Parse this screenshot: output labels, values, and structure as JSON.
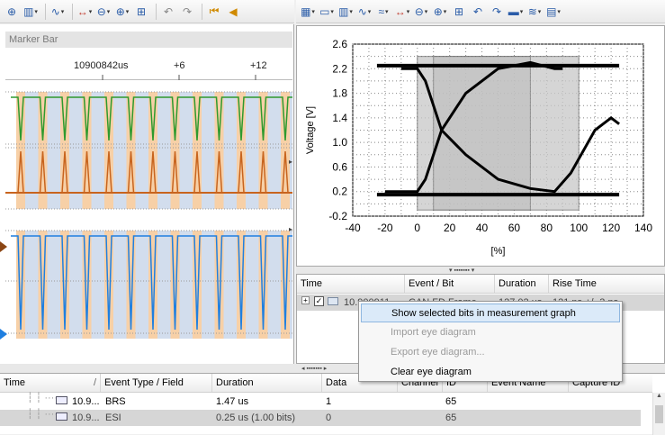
{
  "left_toolbar": {
    "icons": [
      "zoom-fit-icon",
      "chart-options-icon",
      "curve-icon",
      "expand-horizontal-icon",
      "zoom-out-icon",
      "zoom-in-icon",
      "zoom-box-icon",
      "undo-icon",
      "redo-icon",
      "go-first-icon",
      "go-prev-icon"
    ]
  },
  "right_toolbar": {
    "icons": [
      "grid-icon",
      "window-icon",
      "chart-options-icon",
      "curve-icon",
      "curve2-icon",
      "expand-horizontal-icon",
      "zoom-out-icon",
      "zoom-in-icon",
      "zoom-box-icon",
      "undo-icon",
      "redo-icon",
      "display-icon",
      "signal-icon",
      "print-icon"
    ]
  },
  "marker_bar": {
    "label": "Marker Bar"
  },
  "ruler": {
    "time_label": "10900842us",
    "tick1": "+6",
    "tick2": "+12"
  },
  "eye_chart": {
    "ylabel": "Voltage [V]",
    "xlabel": "[%]",
    "y_ticks": [
      "2.6",
      "2.2",
      "1.8",
      "1.4",
      "1.0",
      "0.6",
      "0.2",
      "-0.2"
    ],
    "x_ticks": [
      "-40",
      "-20",
      "0",
      "20",
      "40",
      "60",
      "80",
      "100",
      "120",
      "140"
    ]
  },
  "chart_data": {
    "type": "line",
    "title": "",
    "xlabel": "[%]",
    "ylabel": "Voltage [V]",
    "xlim": [
      -40,
      140
    ],
    "ylim": [
      -0.2,
      2.6
    ],
    "grid": true,
    "series": [
      {
        "x": [
          -25,
          0,
          20,
          40,
          60,
          80,
          100,
          125
        ],
        "y": [
          2.25,
          2.25,
          2.25,
          2.25,
          2.25,
          2.25,
          2.25,
          2.25
        ]
      },
      {
        "x": [
          -25,
          0,
          20,
          40,
          60,
          80,
          100,
          125
        ],
        "y": [
          0.15,
          0.15,
          0.15,
          0.15,
          0.15,
          0.15,
          0.15,
          0.15
        ]
      },
      {
        "x": [
          -20,
          0,
          5,
          15,
          30,
          50,
          70,
          85,
          90
        ],
        "y": [
          0.2,
          0.2,
          0.4,
          1.2,
          1.8,
          2.2,
          2.3,
          2.2,
          2.2
        ]
      },
      {
        "x": [
          -10,
          0,
          5,
          15,
          30,
          50,
          70,
          85,
          95,
          110,
          120,
          125
        ],
        "y": [
          2.2,
          2.2,
          2.0,
          1.2,
          0.8,
          0.4,
          0.25,
          0.2,
          0.5,
          1.2,
          1.4,
          1.3
        ]
      }
    ]
  },
  "events_grid": {
    "headers": [
      "Time",
      "Event / Bit",
      "Duration",
      "Rise Time"
    ],
    "row": {
      "time": "10.900911...",
      "event": "CAN FD Frame",
      "duration": "127.02 us",
      "rise": "121 ns +/- 3 ns"
    }
  },
  "context_menu": {
    "items": [
      {
        "label": "Show selected bits in measurement graph",
        "enabled": true,
        "highlighted": true
      },
      {
        "label": "Import eye diagram",
        "enabled": false
      },
      {
        "label": "Export eye diagram...",
        "enabled": false
      },
      {
        "label": "Clear eye diagram",
        "enabled": true
      }
    ]
  },
  "bottom_grid": {
    "headers": [
      "Time",
      "Event Type / Field",
      "Duration",
      "Data",
      "Channel",
      "ID",
      "Event Name",
      "Capture ID"
    ],
    "rows": [
      {
        "time": "10.9...",
        "field": "BRS",
        "duration": "1.47 us",
        "data": "1",
        "id": "65"
      },
      {
        "time": "10.9...",
        "field": "ESI",
        "duration": "0.25 us (1.00 bits)",
        "data": "0",
        "id": "65"
      }
    ]
  },
  "colors": {
    "green_wave": "#2e9a2e",
    "orange_wave": "#c8641e",
    "blue_wave": "#1f7fe0",
    "highlight_band": "#f4c08a"
  }
}
